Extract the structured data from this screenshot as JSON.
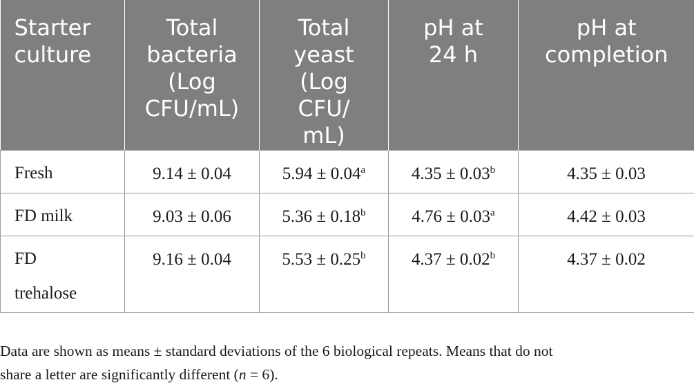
{
  "table": {
    "headers": [
      [
        "Starter",
        "culture"
      ],
      [
        "Total",
        "bacteria",
        "(Log",
        "CFU/mL)"
      ],
      [
        "Total",
        "yeast",
        "(Log",
        "CFU/",
        "mL)"
      ],
      [
        "pH at",
        "24 h"
      ],
      [
        "pH at",
        "completion"
      ]
    ],
    "rows": [
      {
        "culture": [
          "Fresh"
        ],
        "bacteria": {
          "value": "9.14 ± 0.04",
          "sup": ""
        },
        "yeast": {
          "value": "5.94 ± 0.04",
          "sup": "a"
        },
        "ph24": {
          "value": "4.35 ± 0.03",
          "sup": "b"
        },
        "phc": {
          "value": "4.35 ± 0.03",
          "sup": ""
        }
      },
      {
        "culture": [
          "FD milk"
        ],
        "bacteria": {
          "value": "9.03 ± 0.06",
          "sup": ""
        },
        "yeast": {
          "value": "5.36 ± 0.18",
          "sup": "b"
        },
        "ph24": {
          "value": "4.76 ± 0.03",
          "sup": "a"
        },
        "phc": {
          "value": "4.42 ± 0.03",
          "sup": ""
        }
      },
      {
        "culture": [
          "FD",
          "trehalose"
        ],
        "bacteria": {
          "value": "9.16 ± 0.04",
          "sup": ""
        },
        "yeast": {
          "value": "5.53 ± 0.25",
          "sup": "b"
        },
        "ph24": {
          "value": "4.37 ± 0.02",
          "sup": "b"
        },
        "phc": {
          "value": "4.37 ± 0.02",
          "sup": ""
        }
      }
    ]
  },
  "footnote": {
    "line1": "Data are shown as means ± standard deviations of the 6 biological repeats. Means that do not",
    "line2_pre": "share a letter are significantly different (",
    "line2_n": "n",
    "line2_post": " = 6)."
  }
}
